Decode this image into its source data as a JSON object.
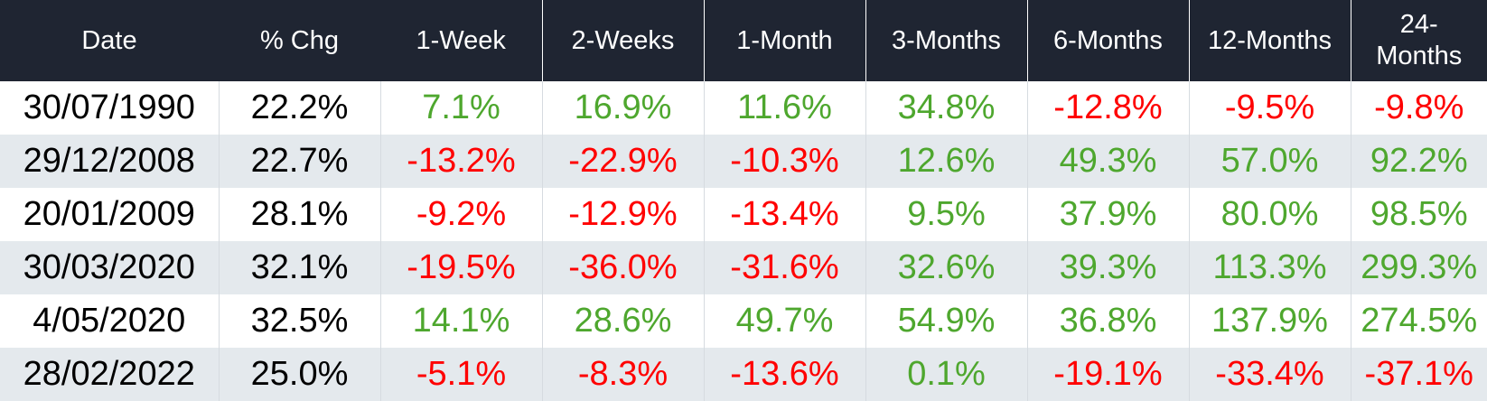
{
  "table": {
    "columns": [
      "Date",
      "% Chg",
      "1-Week",
      "2-Weeks",
      "1-Month",
      "3-Months",
      "6-Months",
      "12-Months",
      "24-Months"
    ],
    "last_header_lines": [
      "24-",
      "Months"
    ],
    "rows": [
      [
        "30/07/1990",
        "22.2%",
        "7.1%",
        "16.9%",
        "11.6%",
        "34.8%",
        "-12.8%",
        "-9.5%",
        "-9.8%"
      ],
      [
        "29/12/2008",
        "22.7%",
        "-13.2%",
        "-22.9%",
        "-10.3%",
        "12.6%",
        "49.3%",
        "57.0%",
        "92.2%"
      ],
      [
        "20/01/2009",
        "28.1%",
        "-9.2%",
        "-12.9%",
        "-13.4%",
        "9.5%",
        "37.9%",
        "80.0%",
        "98.5%"
      ],
      [
        "30/03/2020",
        "32.1%",
        "-19.5%",
        "-36.0%",
        "-31.6%",
        "32.6%",
        "39.3%",
        "113.3%",
        "299.3%"
      ],
      [
        "4/05/2020",
        "32.5%",
        "14.1%",
        "28.6%",
        "49.7%",
        "54.9%",
        "36.8%",
        "137.9%",
        "274.5%"
      ],
      [
        "28/02/2022",
        "25.0%",
        "-5.1%",
        "-8.3%",
        "-13.6%",
        "0.1%",
        "-19.1%",
        "-33.4%",
        "-37.1%"
      ]
    ]
  },
  "colors": {
    "header_bg": "#1f2532",
    "header_text": "#ffffff",
    "positive": "#4ea72e",
    "negative": "#ff0000",
    "neutral": "#000000",
    "stripe": "#e4e9ed"
  }
}
